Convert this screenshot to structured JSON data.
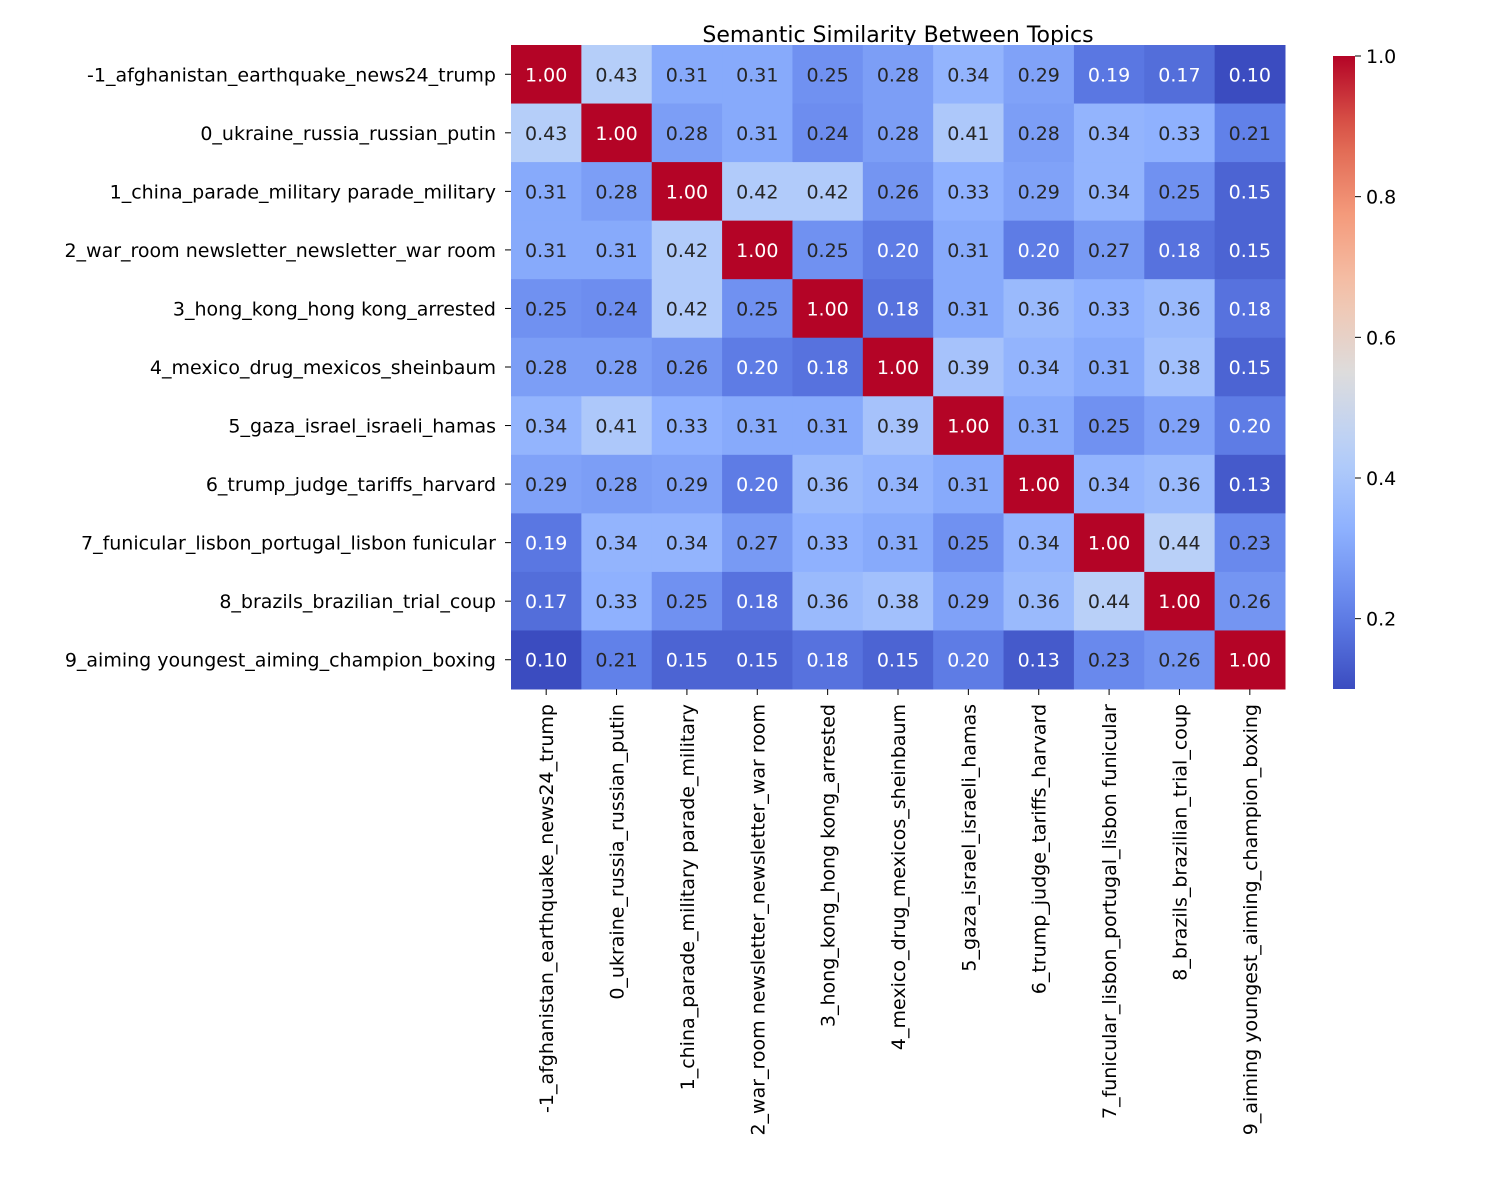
{
  "chart_data": {
    "type": "heatmap",
    "title": "Semantic Similarity Between Topics",
    "colormap": "coolwarm",
    "vmin": 0.1,
    "vmax": 1.0,
    "colorbar_ticks": [
      "0.2",
      "0.4",
      "0.6",
      "0.8",
      "1.0"
    ],
    "labels": [
      "-1_afghanistan_earthquake_news24_trump",
      "0_ukraine_russia_russian_putin",
      "1_china_parade_military parade_military",
      "2_war_room newsletter_newsletter_war room",
      "3_hong_kong_hong kong_arrested",
      "4_mexico_drug_mexicos_sheinbaum",
      "5_gaza_israel_israeli_hamas",
      "6_trump_judge_tariffs_harvard",
      "7_funicular_lisbon_portugal_lisbon funicular",
      "8_brazils_brazilian_trial_coup",
      "9_aiming youngest_aiming_champion_boxing"
    ],
    "values": [
      [
        1.0,
        0.43,
        0.31,
        0.31,
        0.25,
        0.28,
        0.34,
        0.29,
        0.19,
        0.17,
        0.1
      ],
      [
        0.43,
        1.0,
        0.28,
        0.31,
        0.24,
        0.28,
        0.41,
        0.28,
        0.34,
        0.33,
        0.21
      ],
      [
        0.31,
        0.28,
        1.0,
        0.42,
        0.42,
        0.26,
        0.33,
        0.29,
        0.34,
        0.25,
        0.15
      ],
      [
        0.31,
        0.31,
        0.42,
        1.0,
        0.25,
        0.2,
        0.31,
        0.2,
        0.27,
        0.18,
        0.15
      ],
      [
        0.25,
        0.24,
        0.42,
        0.25,
        1.0,
        0.18,
        0.31,
        0.36,
        0.33,
        0.36,
        0.18
      ],
      [
        0.28,
        0.28,
        0.26,
        0.2,
        0.18,
        1.0,
        0.39,
        0.34,
        0.31,
        0.38,
        0.15
      ],
      [
        0.34,
        0.41,
        0.33,
        0.31,
        0.31,
        0.39,
        1.0,
        0.31,
        0.25,
        0.29,
        0.2
      ],
      [
        0.29,
        0.28,
        0.29,
        0.2,
        0.36,
        0.34,
        0.31,
        1.0,
        0.34,
        0.36,
        0.13
      ],
      [
        0.19,
        0.34,
        0.34,
        0.27,
        0.33,
        0.31,
        0.25,
        0.34,
        1.0,
        0.44,
        0.23
      ],
      [
        0.17,
        0.33,
        0.25,
        0.18,
        0.36,
        0.38,
        0.29,
        0.36,
        0.44,
        1.0,
        0.26
      ],
      [
        0.1,
        0.21,
        0.15,
        0.15,
        0.18,
        0.15,
        0.2,
        0.13,
        0.23,
        0.26,
        1.0
      ]
    ]
  }
}
